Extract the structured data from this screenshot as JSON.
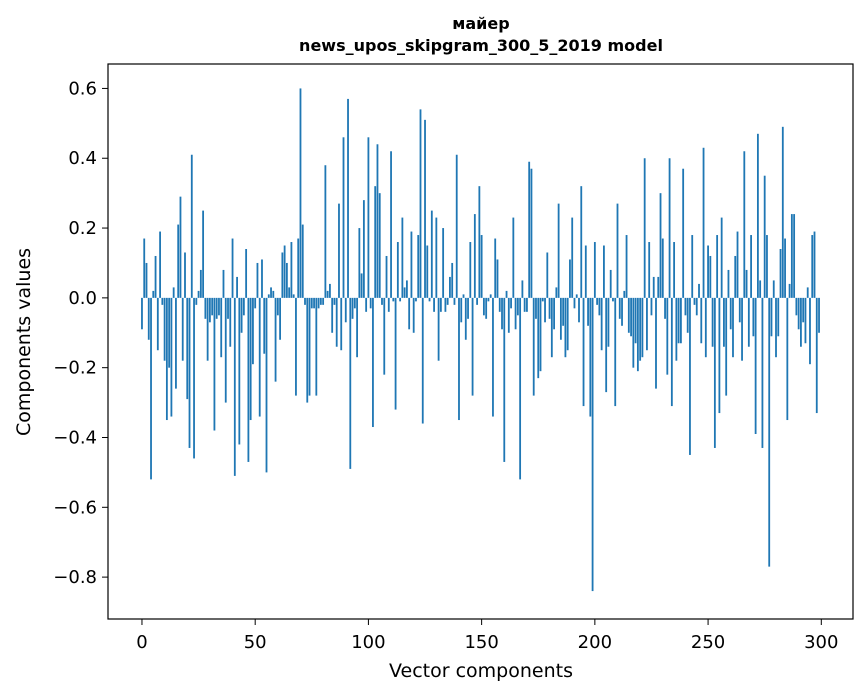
{
  "chart_data": {
    "type": "bar",
    "title_line1": "майер",
    "title_line2": "news_upos_skipgram_300_5_2019 model",
    "xlabel": "Vector components",
    "ylabel": "Components values",
    "xlim": [
      -15,
      314
    ],
    "ylim": [
      -0.92,
      0.67
    ],
    "xticks": [
      0,
      50,
      100,
      150,
      200,
      250,
      300
    ],
    "xtick_labels": [
      "0",
      "50",
      "100",
      "150",
      "200",
      "250",
      "300"
    ],
    "yticks": [
      0.6,
      0.4,
      0.2,
      0.0,
      -0.2,
      -0.4,
      -0.6,
      -0.8
    ],
    "ytick_labels": [
      "0.6",
      "0.4",
      "0.2",
      "0.0",
      "−0.2",
      "−0.4",
      "−0.6",
      "−0.8"
    ],
    "bar_color": "#1f77b4",
    "values": [
      -0.09,
      0.17,
      0.1,
      -0.12,
      -0.52,
      0.02,
      0.12,
      -0.15,
      0.19,
      -0.02,
      -0.18,
      -0.35,
      -0.2,
      -0.34,
      0.03,
      -0.26,
      0.21,
      0.29,
      -0.18,
      0.13,
      -0.29,
      -0.43,
      0.41,
      -0.46,
      -0.02,
      0.02,
      0.08,
      0.25,
      -0.06,
      -0.18,
      -0.07,
      -0.05,
      -0.38,
      -0.06,
      -0.05,
      -0.17,
      0.08,
      -0.3,
      -0.06,
      -0.14,
      0.17,
      -0.51,
      0.06,
      -0.42,
      -0.1,
      -0.05,
      0.14,
      -0.47,
      -0.35,
      -0.19,
      -0.03,
      0.1,
      -0.34,
      0.11,
      -0.16,
      -0.5,
      0.01,
      0.03,
      0.02,
      -0.24,
      -0.05,
      -0.12,
      0.13,
      0.15,
      0.1,
      0.03,
      0.16,
      0.01,
      -0.28,
      0.17,
      0.6,
      0.21,
      -0.02,
      -0.3,
      -0.28,
      -0.03,
      -0.03,
      -0.28,
      -0.03,
      -0.02,
      -0.02,
      0.38,
      0.02,
      0.04,
      -0.1,
      -0.02,
      -0.14,
      0.27,
      -0.15,
      0.46,
      -0.07,
      0.57,
      -0.49,
      -0.06,
      -0.03,
      -0.17,
      0.2,
      0.07,
      0.28,
      -0.04,
      0.46,
      -0.03,
      -0.37,
      0.32,
      0.44,
      0.3,
      -0.02,
      -0.22,
      0.12,
      -0.04,
      0.42,
      -0.01,
      -0.32,
      0.16,
      -0.01,
      0.23,
      0.03,
      0.05,
      -0.09,
      0.19,
      -0.1,
      -0.01,
      0.18,
      0.54,
      -0.36,
      0.51,
      0.15,
      -0.01,
      0.25,
      -0.04,
      0.23,
      -0.18,
      -0.04,
      0.2,
      -0.04,
      -0.02,
      0.06,
      0.1,
      -0.02,
      0.41,
      -0.35,
      -0.07,
      0.01,
      -0.12,
      -0.06,
      0.16,
      -0.28,
      0.24,
      -0.02,
      0.32,
      0.18,
      -0.05,
      -0.06,
      -0.01,
      0.01,
      -0.34,
      0.17,
      0.11,
      -0.04,
      -0.09,
      -0.47,
      0.02,
      -0.1,
      -0.03,
      0.23,
      -0.09,
      -0.05,
      -0.52,
      0.05,
      -0.04,
      -0.04,
      0.39,
      0.37,
      -0.28,
      -0.06,
      -0.23,
      -0.21,
      -0.01,
      -0.07,
      0.13,
      -0.06,
      -0.17,
      -0.09,
      0.03,
      0.27,
      -0.12,
      -0.08,
      -0.17,
      -0.15,
      0.11,
      0.23,
      -0.03,
      0.01,
      -0.07,
      0.32,
      -0.31,
      0.15,
      -0.08,
      -0.34,
      -0.84,
      0.16,
      -0.02,
      -0.05,
      -0.15,
      0.15,
      -0.27,
      -0.14,
      0.08,
      -0.01,
      -0.31,
      0.27,
      -0.06,
      -0.08,
      0.02,
      0.18,
      -0.1,
      -0.11,
      -0.2,
      -0.13,
      -0.21,
      -0.18,
      -0.17,
      0.4,
      -0.15,
      0.16,
      -0.05,
      0.06,
      -0.26,
      0.06,
      0.3,
      0.17,
      -0.06,
      -0.22,
      0.4,
      -0.31,
      0.16,
      -0.18,
      -0.13,
      -0.13,
      0.37,
      -0.05,
      -0.1,
      -0.45,
      0.18,
      -0.02,
      -0.05,
      0.04,
      -0.13,
      0.43,
      -0.17,
      0.15,
      0.12,
      -0.14,
      -0.43,
      0.18,
      -0.33,
      0.23,
      -0.14,
      -0.28,
      0.08,
      -0.09,
      -0.17,
      0.12,
      0.19,
      -0.07,
      -0.18,
      0.42,
      0.08,
      -0.14,
      0.18,
      -0.11,
      -0.39,
      0.47,
      0.05,
      -0.43,
      0.35,
      0.18,
      -0.77,
      -0.11,
      0.05,
      -0.17,
      -0.11,
      0.14,
      0.49,
      0.17,
      -0.35,
      0.04,
      0.24,
      0.24,
      -0.05,
      -0.09,
      -0.14,
      -0.07,
      -0.13,
      0.03,
      -0.19,
      0.18,
      0.19,
      -0.33,
      -0.1
    ]
  }
}
